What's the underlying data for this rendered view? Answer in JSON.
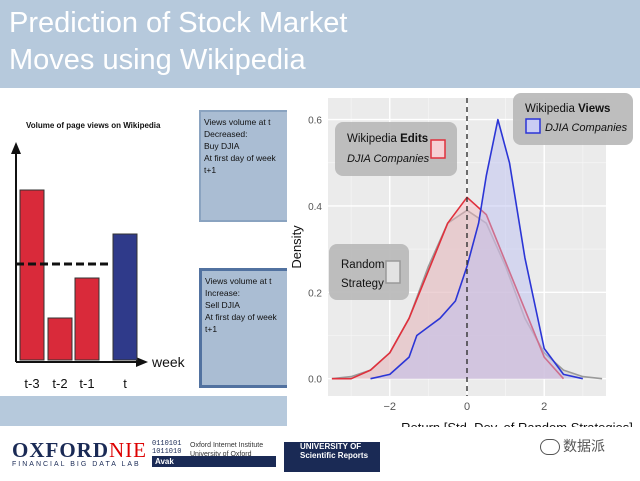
{
  "slide": {
    "title": "Prediction of Stock Market\nMoves using Wikipedia"
  },
  "volume_chart": {
    "title": "Volume of page views on Wikipedia",
    "xlabel": "week",
    "categories": [
      "t-3",
      "t-2",
      "t-1",
      "t"
    ],
    "values": [
      0.85,
      0.21,
      0.41,
      0.63
    ],
    "colors": [
      "#d92a3a",
      "#d92a3a",
      "#d92a3a",
      "#2f3a8a"
    ],
    "average_line": 0.48
  },
  "rules": {
    "decrease_text": "Views volume at t\nDecreased:\nBuy DJIA\nAt first day of week t+1",
    "increase_text": "Views volume at t\nIncrease:\nSell DJIA\nAt first day of week t+1"
  },
  "chart_data": {
    "type": "area",
    "title": "",
    "xlabel": "Return [Std. Dev. of Random Strategies]",
    "ylabel": "Density",
    "xlim": [
      -3.6,
      3.6
    ],
    "ylim": [
      -0.04,
      0.65
    ],
    "xticks": [
      -2,
      0,
      2
    ],
    "xtick_labels": [
      "−2",
      "0",
      "2"
    ],
    "yticks": [
      0.0,
      0.2,
      0.4,
      0.6
    ],
    "ytick_labels": [
      "0.0",
      "0.2",
      "0.4",
      "0.6"
    ],
    "vline_x": 0,
    "grid": true,
    "series": [
      {
        "name": "Random Strategy",
        "color": "#9a9a9a",
        "fill": "#c9c9c9",
        "x": [
          -3.5,
          -3.0,
          -2.5,
          -2.0,
          -1.5,
          -1.0,
          -0.5,
          0.0,
          0.5,
          1.0,
          1.5,
          2.0,
          2.5,
          3.0,
          3.5
        ],
        "y": [
          0.0,
          0.005,
          0.02,
          0.06,
          0.14,
          0.26,
          0.36,
          0.39,
          0.36,
          0.26,
          0.14,
          0.06,
          0.02,
          0.005,
          0.0
        ]
      },
      {
        "name": "Wikipedia Edits",
        "sublabel": "DJIA Companies",
        "color": "#e0303c",
        "fill": "#f3b9bf",
        "x": [
          -3.5,
          -3.0,
          -2.5,
          -2.0,
          -1.5,
          -1.0,
          -0.5,
          0.0,
          0.5,
          1.0,
          1.5,
          2.0,
          2.5
        ],
        "y": [
          0.0,
          0.0,
          0.02,
          0.06,
          0.14,
          0.25,
          0.36,
          0.42,
          0.38,
          0.27,
          0.16,
          0.05,
          0.0
        ]
      },
      {
        "name": "Wikipedia Views",
        "sublabel": "DJIA Companies",
        "color": "#2b35d6",
        "fill": "#b9bdf2",
        "x": [
          -2.5,
          -2.0,
          -1.5,
          -1.3,
          -1.0,
          -0.7,
          -0.3,
          0.0,
          0.3,
          0.5,
          0.8,
          1.1,
          1.5,
          2.0,
          2.5,
          3.0
        ],
        "y": [
          0.0,
          0.01,
          0.05,
          0.1,
          0.12,
          0.14,
          0.18,
          0.26,
          0.36,
          0.47,
          0.6,
          0.5,
          0.28,
          0.07,
          0.01,
          0.0
        ]
      }
    ]
  },
  "legends": {
    "views_bold": "Views",
    "views_prefix": "Wikipedia ",
    "views_sub": "DJIA Companies",
    "edits_prefix": "Wikipedia ",
    "edits_bold": "Edits",
    "edits_sub": "DJIA Companies",
    "random_line1": "Random",
    "random_line2": "Strategy"
  },
  "footer": {
    "oxford_a": "OXFORD",
    "oxford_b": "NIE",
    "fbdl": "FINANCIAL BIG DATA LAB",
    "oii_name": "Oxford Internet Institute\nUniversity of Oxford",
    "oii_bits": "0110101\n1011010\n0101101",
    "avak": "Avak",
    "sreports_a": "UNIVERSITY OF",
    "sreports_b": "Scientific Reports",
    "watermark": "数据派"
  },
  "colors": {
    "header": "#b6c9dc",
    "red_bar": "#d92a3a",
    "blue_bar": "#2f3a8a",
    "box": "#aabdd3"
  }
}
